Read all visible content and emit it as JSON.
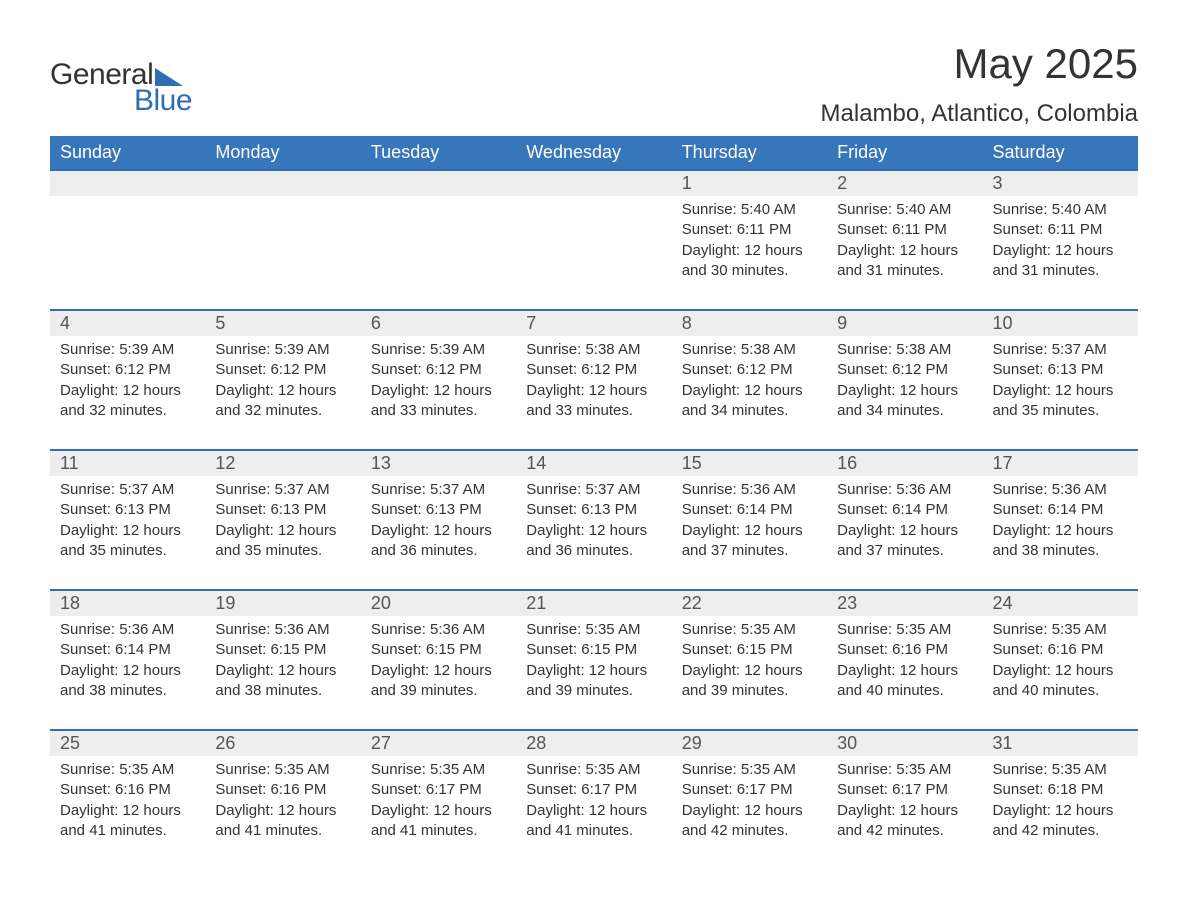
{
  "logo": {
    "text1": "General",
    "text2": "Blue",
    "accent_color": "#2f6eb5"
  },
  "title": "May 2025",
  "location": "Malambo, Atlantico, Colombia",
  "header_bg": "#3776bb",
  "header_fg": "#ffffff",
  "daynum_bg": "#eeeeee",
  "border_color": "#2f6eb5",
  "text_color": "#333333",
  "day_headers": [
    "Sunday",
    "Monday",
    "Tuesday",
    "Wednesday",
    "Thursday",
    "Friday",
    "Saturday"
  ],
  "weeks": [
    [
      null,
      null,
      null,
      null,
      {
        "n": "1",
        "sr": "Sunrise: 5:40 AM",
        "ss": "Sunset: 6:11 PM",
        "d1": "Daylight: 12 hours",
        "d2": "and 30 minutes."
      },
      {
        "n": "2",
        "sr": "Sunrise: 5:40 AM",
        "ss": "Sunset: 6:11 PM",
        "d1": "Daylight: 12 hours",
        "d2": "and 31 minutes."
      },
      {
        "n": "3",
        "sr": "Sunrise: 5:40 AM",
        "ss": "Sunset: 6:11 PM",
        "d1": "Daylight: 12 hours",
        "d2": "and 31 minutes."
      }
    ],
    [
      {
        "n": "4",
        "sr": "Sunrise: 5:39 AM",
        "ss": "Sunset: 6:12 PM",
        "d1": "Daylight: 12 hours",
        "d2": "and 32 minutes."
      },
      {
        "n": "5",
        "sr": "Sunrise: 5:39 AM",
        "ss": "Sunset: 6:12 PM",
        "d1": "Daylight: 12 hours",
        "d2": "and 32 minutes."
      },
      {
        "n": "6",
        "sr": "Sunrise: 5:39 AM",
        "ss": "Sunset: 6:12 PM",
        "d1": "Daylight: 12 hours",
        "d2": "and 33 minutes."
      },
      {
        "n": "7",
        "sr": "Sunrise: 5:38 AM",
        "ss": "Sunset: 6:12 PM",
        "d1": "Daylight: 12 hours",
        "d2": "and 33 minutes."
      },
      {
        "n": "8",
        "sr": "Sunrise: 5:38 AM",
        "ss": "Sunset: 6:12 PM",
        "d1": "Daylight: 12 hours",
        "d2": "and 34 minutes."
      },
      {
        "n": "9",
        "sr": "Sunrise: 5:38 AM",
        "ss": "Sunset: 6:12 PM",
        "d1": "Daylight: 12 hours",
        "d2": "and 34 minutes."
      },
      {
        "n": "10",
        "sr": "Sunrise: 5:37 AM",
        "ss": "Sunset: 6:13 PM",
        "d1": "Daylight: 12 hours",
        "d2": "and 35 minutes."
      }
    ],
    [
      {
        "n": "11",
        "sr": "Sunrise: 5:37 AM",
        "ss": "Sunset: 6:13 PM",
        "d1": "Daylight: 12 hours",
        "d2": "and 35 minutes."
      },
      {
        "n": "12",
        "sr": "Sunrise: 5:37 AM",
        "ss": "Sunset: 6:13 PM",
        "d1": "Daylight: 12 hours",
        "d2": "and 35 minutes."
      },
      {
        "n": "13",
        "sr": "Sunrise: 5:37 AM",
        "ss": "Sunset: 6:13 PM",
        "d1": "Daylight: 12 hours",
        "d2": "and 36 minutes."
      },
      {
        "n": "14",
        "sr": "Sunrise: 5:37 AM",
        "ss": "Sunset: 6:13 PM",
        "d1": "Daylight: 12 hours",
        "d2": "and 36 minutes."
      },
      {
        "n": "15",
        "sr": "Sunrise: 5:36 AM",
        "ss": "Sunset: 6:14 PM",
        "d1": "Daylight: 12 hours",
        "d2": "and 37 minutes."
      },
      {
        "n": "16",
        "sr": "Sunrise: 5:36 AM",
        "ss": "Sunset: 6:14 PM",
        "d1": "Daylight: 12 hours",
        "d2": "and 37 minutes."
      },
      {
        "n": "17",
        "sr": "Sunrise: 5:36 AM",
        "ss": "Sunset: 6:14 PM",
        "d1": "Daylight: 12 hours",
        "d2": "and 38 minutes."
      }
    ],
    [
      {
        "n": "18",
        "sr": "Sunrise: 5:36 AM",
        "ss": "Sunset: 6:14 PM",
        "d1": "Daylight: 12 hours",
        "d2": "and 38 minutes."
      },
      {
        "n": "19",
        "sr": "Sunrise: 5:36 AM",
        "ss": "Sunset: 6:15 PM",
        "d1": "Daylight: 12 hours",
        "d2": "and 38 minutes."
      },
      {
        "n": "20",
        "sr": "Sunrise: 5:36 AM",
        "ss": "Sunset: 6:15 PM",
        "d1": "Daylight: 12 hours",
        "d2": "and 39 minutes."
      },
      {
        "n": "21",
        "sr": "Sunrise: 5:35 AM",
        "ss": "Sunset: 6:15 PM",
        "d1": "Daylight: 12 hours",
        "d2": "and 39 minutes."
      },
      {
        "n": "22",
        "sr": "Sunrise: 5:35 AM",
        "ss": "Sunset: 6:15 PM",
        "d1": "Daylight: 12 hours",
        "d2": "and 39 minutes."
      },
      {
        "n": "23",
        "sr": "Sunrise: 5:35 AM",
        "ss": "Sunset: 6:16 PM",
        "d1": "Daylight: 12 hours",
        "d2": "and 40 minutes."
      },
      {
        "n": "24",
        "sr": "Sunrise: 5:35 AM",
        "ss": "Sunset: 6:16 PM",
        "d1": "Daylight: 12 hours",
        "d2": "and 40 minutes."
      }
    ],
    [
      {
        "n": "25",
        "sr": "Sunrise: 5:35 AM",
        "ss": "Sunset: 6:16 PM",
        "d1": "Daylight: 12 hours",
        "d2": "and 41 minutes."
      },
      {
        "n": "26",
        "sr": "Sunrise: 5:35 AM",
        "ss": "Sunset: 6:16 PM",
        "d1": "Daylight: 12 hours",
        "d2": "and 41 minutes."
      },
      {
        "n": "27",
        "sr": "Sunrise: 5:35 AM",
        "ss": "Sunset: 6:17 PM",
        "d1": "Daylight: 12 hours",
        "d2": "and 41 minutes."
      },
      {
        "n": "28",
        "sr": "Sunrise: 5:35 AM",
        "ss": "Sunset: 6:17 PM",
        "d1": "Daylight: 12 hours",
        "d2": "and 41 minutes."
      },
      {
        "n": "29",
        "sr": "Sunrise: 5:35 AM",
        "ss": "Sunset: 6:17 PM",
        "d1": "Daylight: 12 hours",
        "d2": "and 42 minutes."
      },
      {
        "n": "30",
        "sr": "Sunrise: 5:35 AM",
        "ss": "Sunset: 6:17 PM",
        "d1": "Daylight: 12 hours",
        "d2": "and 42 minutes."
      },
      {
        "n": "31",
        "sr": "Sunrise: 5:35 AM",
        "ss": "Sunset: 6:18 PM",
        "d1": "Daylight: 12 hours",
        "d2": "and 42 minutes."
      }
    ]
  ]
}
